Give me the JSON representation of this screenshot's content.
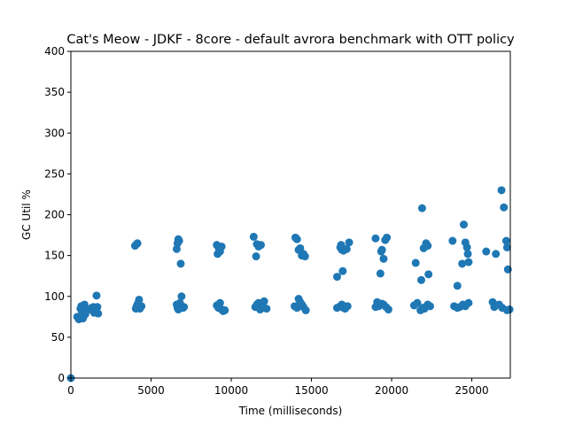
{
  "chart_data": {
    "type": "scatter",
    "title": "Cat's Meow - JDKF - 8core -  default avrora benchmark with OTT policy",
    "xlabel": "Time (milliseconds)",
    "ylabel": "GC Util %",
    "xlim": [
      0,
      27400
    ],
    "ylim": [
      0,
      400
    ],
    "xticks": [
      0,
      5000,
      10000,
      15000,
      20000,
      25000
    ],
    "yticks": [
      0,
      50,
      100,
      150,
      200,
      250,
      300,
      350,
      400
    ],
    "grid": false,
    "legend": "none",
    "marker_color": "#1f77b4",
    "series": [
      {
        "points": [
          [
            0,
            0
          ],
          [
            400,
            75
          ],
          [
            500,
            72
          ],
          [
            600,
            85
          ],
          [
            650,
            88
          ],
          [
            700,
            80
          ],
          [
            750,
            73
          ],
          [
            800,
            84
          ],
          [
            850,
            90
          ],
          [
            900,
            78
          ],
          [
            1200,
            84
          ],
          [
            1300,
            86
          ],
          [
            1400,
            87
          ],
          [
            1450,
            80
          ],
          [
            1500,
            85
          ],
          [
            1550,
            83
          ],
          [
            1600,
            101
          ],
          [
            1650,
            87
          ],
          [
            1700,
            79
          ],
          [
            4000,
            162
          ],
          [
            4100,
            164
          ],
          [
            4150,
            165
          ],
          [
            4050,
            85
          ],
          [
            4100,
            88
          ],
          [
            4150,
            90
          ],
          [
            4200,
            92
          ],
          [
            4250,
            96
          ],
          [
            4300,
            85
          ],
          [
            4350,
            87
          ],
          [
            4400,
            88
          ],
          [
            6600,
            158
          ],
          [
            6650,
            165
          ],
          [
            6700,
            170
          ],
          [
            6750,
            168
          ],
          [
            6850,
            140
          ],
          [
            6600,
            90
          ],
          [
            6650,
            86
          ],
          [
            6700,
            84
          ],
          [
            6800,
            92
          ],
          [
            6900,
            100
          ],
          [
            7000,
            86
          ],
          [
            7050,
            87
          ],
          [
            9100,
            163
          ],
          [
            9200,
            160
          ],
          [
            9150,
            152
          ],
          [
            9300,
            155
          ],
          [
            9400,
            161
          ],
          [
            9100,
            89
          ],
          [
            9200,
            86
          ],
          [
            9300,
            92
          ],
          [
            9400,
            84
          ],
          [
            9500,
            82
          ],
          [
            9600,
            83
          ],
          [
            11400,
            173
          ],
          [
            11550,
            149
          ],
          [
            11600,
            164
          ],
          [
            11700,
            161
          ],
          [
            11850,
            163
          ],
          [
            11500,
            87
          ],
          [
            11600,
            90
          ],
          [
            11700,
            92
          ],
          [
            11800,
            84
          ],
          [
            11950,
            86
          ],
          [
            12050,
            94
          ],
          [
            12200,
            85
          ],
          [
            14000,
            172
          ],
          [
            14100,
            170
          ],
          [
            14200,
            157
          ],
          [
            14300,
            159
          ],
          [
            14400,
            150
          ],
          [
            14500,
            152
          ],
          [
            14600,
            149
          ],
          [
            13950,
            88
          ],
          [
            14100,
            86
          ],
          [
            14200,
            97
          ],
          [
            14300,
            93
          ],
          [
            14400,
            90
          ],
          [
            14500,
            87
          ],
          [
            14650,
            83
          ],
          [
            16600,
            124
          ],
          [
            16800,
            160
          ],
          [
            16850,
            163
          ],
          [
            16900,
            157
          ],
          [
            16950,
            131
          ],
          [
            17000,
            156
          ],
          [
            17200,
            158
          ],
          [
            17350,
            166
          ],
          [
            16600,
            86
          ],
          [
            16800,
            88
          ],
          [
            16900,
            90
          ],
          [
            17000,
            86
          ],
          [
            17100,
            85
          ],
          [
            17250,
            88
          ],
          [
            19000,
            171
          ],
          [
            19100,
            93
          ],
          [
            19300,
            128
          ],
          [
            19350,
            155
          ],
          [
            19400,
            157
          ],
          [
            19500,
            146
          ],
          [
            19600,
            169
          ],
          [
            19700,
            172
          ],
          [
            19000,
            87
          ],
          [
            19200,
            88
          ],
          [
            19400,
            91
          ],
          [
            19500,
            90
          ],
          [
            19650,
            87
          ],
          [
            19800,
            84
          ],
          [
            21500,
            141
          ],
          [
            21900,
            208
          ],
          [
            21850,
            120
          ],
          [
            22000,
            159
          ],
          [
            22150,
            165
          ],
          [
            22250,
            162
          ],
          [
            22300,
            127
          ],
          [
            21400,
            89
          ],
          [
            21600,
            92
          ],
          [
            21800,
            83
          ],
          [
            21950,
            86
          ],
          [
            22050,
            85
          ],
          [
            22250,
            90
          ],
          [
            22400,
            88
          ],
          [
            23800,
            168
          ],
          [
            24100,
            113
          ],
          [
            24400,
            140
          ],
          [
            24500,
            188
          ],
          [
            24600,
            166
          ],
          [
            24700,
            160
          ],
          [
            24750,
            152
          ],
          [
            24800,
            142
          ],
          [
            23900,
            88
          ],
          [
            24100,
            86
          ],
          [
            24250,
            87
          ],
          [
            24450,
            90
          ],
          [
            24600,
            88
          ],
          [
            24800,
            92
          ],
          [
            25900,
            155
          ],
          [
            26300,
            93
          ],
          [
            26500,
            152
          ],
          [
            26850,
            230
          ],
          [
            27000,
            209
          ],
          [
            27150,
            168
          ],
          [
            27200,
            160
          ],
          [
            27250,
            133
          ],
          [
            26400,
            87
          ],
          [
            26500,
            89
          ],
          [
            26700,
            90
          ],
          [
            26900,
            86
          ],
          [
            27200,
            83
          ],
          [
            27350,
            84
          ]
        ]
      }
    ]
  }
}
